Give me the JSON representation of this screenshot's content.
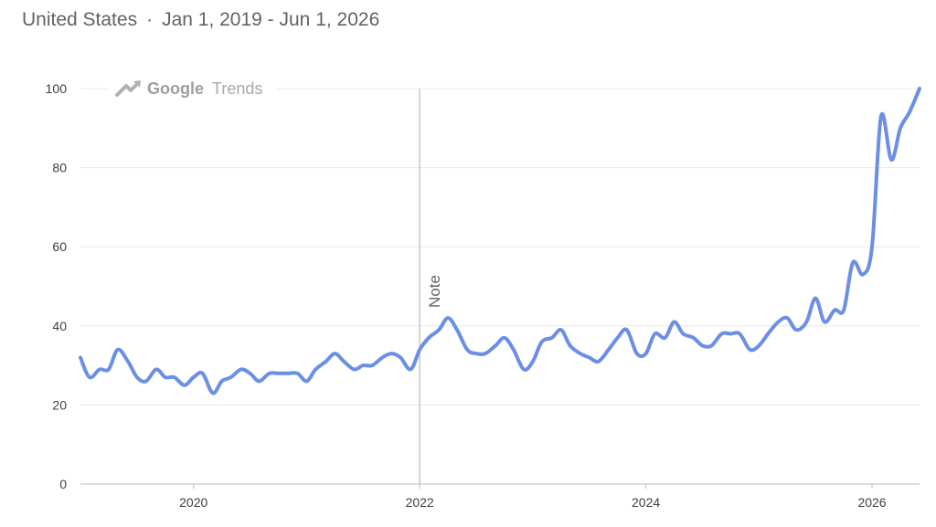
{
  "header": {
    "region": "United States",
    "separator": "·",
    "date_range": "Jan 1, 2019 - Jun 1, 2026"
  },
  "watermark": {
    "google": "Google",
    "trends": "Trends"
  },
  "annotation": {
    "label": "Note",
    "x": 2022.0
  },
  "colors": {
    "line": "#6b8fe4",
    "grid": "#e8e8e8",
    "axis": "#bdbdbd",
    "note_line": "#c6c6c6"
  },
  "chart_data": {
    "type": "line",
    "title": "",
    "xlabel": "",
    "ylabel": "",
    "ylim": [
      0,
      100
    ],
    "xlim": [
      2019.0,
      2026.42
    ],
    "yticks": [
      0,
      20,
      40,
      60,
      80,
      100
    ],
    "xticks": [
      2020,
      2022,
      2024,
      2026
    ],
    "xtick_labels": [
      "2020",
      "2022",
      "2024",
      "2026"
    ],
    "grid": true,
    "series": [
      {
        "name": "",
        "x": [
          2019.0,
          2019.08,
          2019.17,
          2019.25,
          2019.33,
          2019.42,
          2019.5,
          2019.58,
          2019.67,
          2019.75,
          2019.83,
          2019.92,
          2020.0,
          2020.08,
          2020.17,
          2020.25,
          2020.33,
          2020.42,
          2020.5,
          2020.58,
          2020.67,
          2020.75,
          2020.83,
          2020.92,
          2021.0,
          2021.08,
          2021.17,
          2021.25,
          2021.33,
          2021.42,
          2021.5,
          2021.58,
          2021.67,
          2021.75,
          2021.83,
          2021.92,
          2022.0,
          2022.08,
          2022.17,
          2022.25,
          2022.33,
          2022.42,
          2022.5,
          2022.58,
          2022.67,
          2022.75,
          2022.83,
          2022.92,
          2023.0,
          2023.08,
          2023.17,
          2023.25,
          2023.33,
          2023.42,
          2023.5,
          2023.58,
          2023.67,
          2023.75,
          2023.83,
          2023.92,
          2024.0,
          2024.08,
          2024.17,
          2024.25,
          2024.33,
          2024.42,
          2024.5,
          2024.58,
          2024.67,
          2024.75,
          2024.83,
          2024.92,
          2025.0,
          2025.08,
          2025.17,
          2025.25,
          2025.33,
          2025.42,
          2025.5,
          2025.58,
          2025.67,
          2025.75,
          2025.83,
          2025.92,
          2026.0,
          2026.08,
          2026.17,
          2026.25,
          2026.33,
          2026.42
        ],
        "values": [
          32,
          27,
          29,
          29,
          34,
          31,
          27,
          26,
          29,
          27,
          27,
          25,
          27,
          28,
          23,
          26,
          27,
          29,
          28,
          26,
          28,
          28,
          28,
          28,
          26,
          29,
          31,
          33,
          31,
          29,
          30,
          30,
          32,
          33,
          32,
          29,
          34,
          37,
          39,
          42,
          39,
          34,
          33,
          33,
          35,
          37,
          34,
          29,
          31,
          36,
          37,
          39,
          35,
          33,
          32,
          31,
          34,
          37,
          39,
          33,
          33,
          38,
          37,
          41,
          38,
          37,
          35,
          35,
          38,
          38,
          38,
          34,
          35,
          38,
          41,
          42,
          39,
          41,
          47,
          41,
          44,
          44,
          56,
          53,
          60,
          93,
          82,
          90,
          94,
          100
        ]
      }
    ]
  }
}
